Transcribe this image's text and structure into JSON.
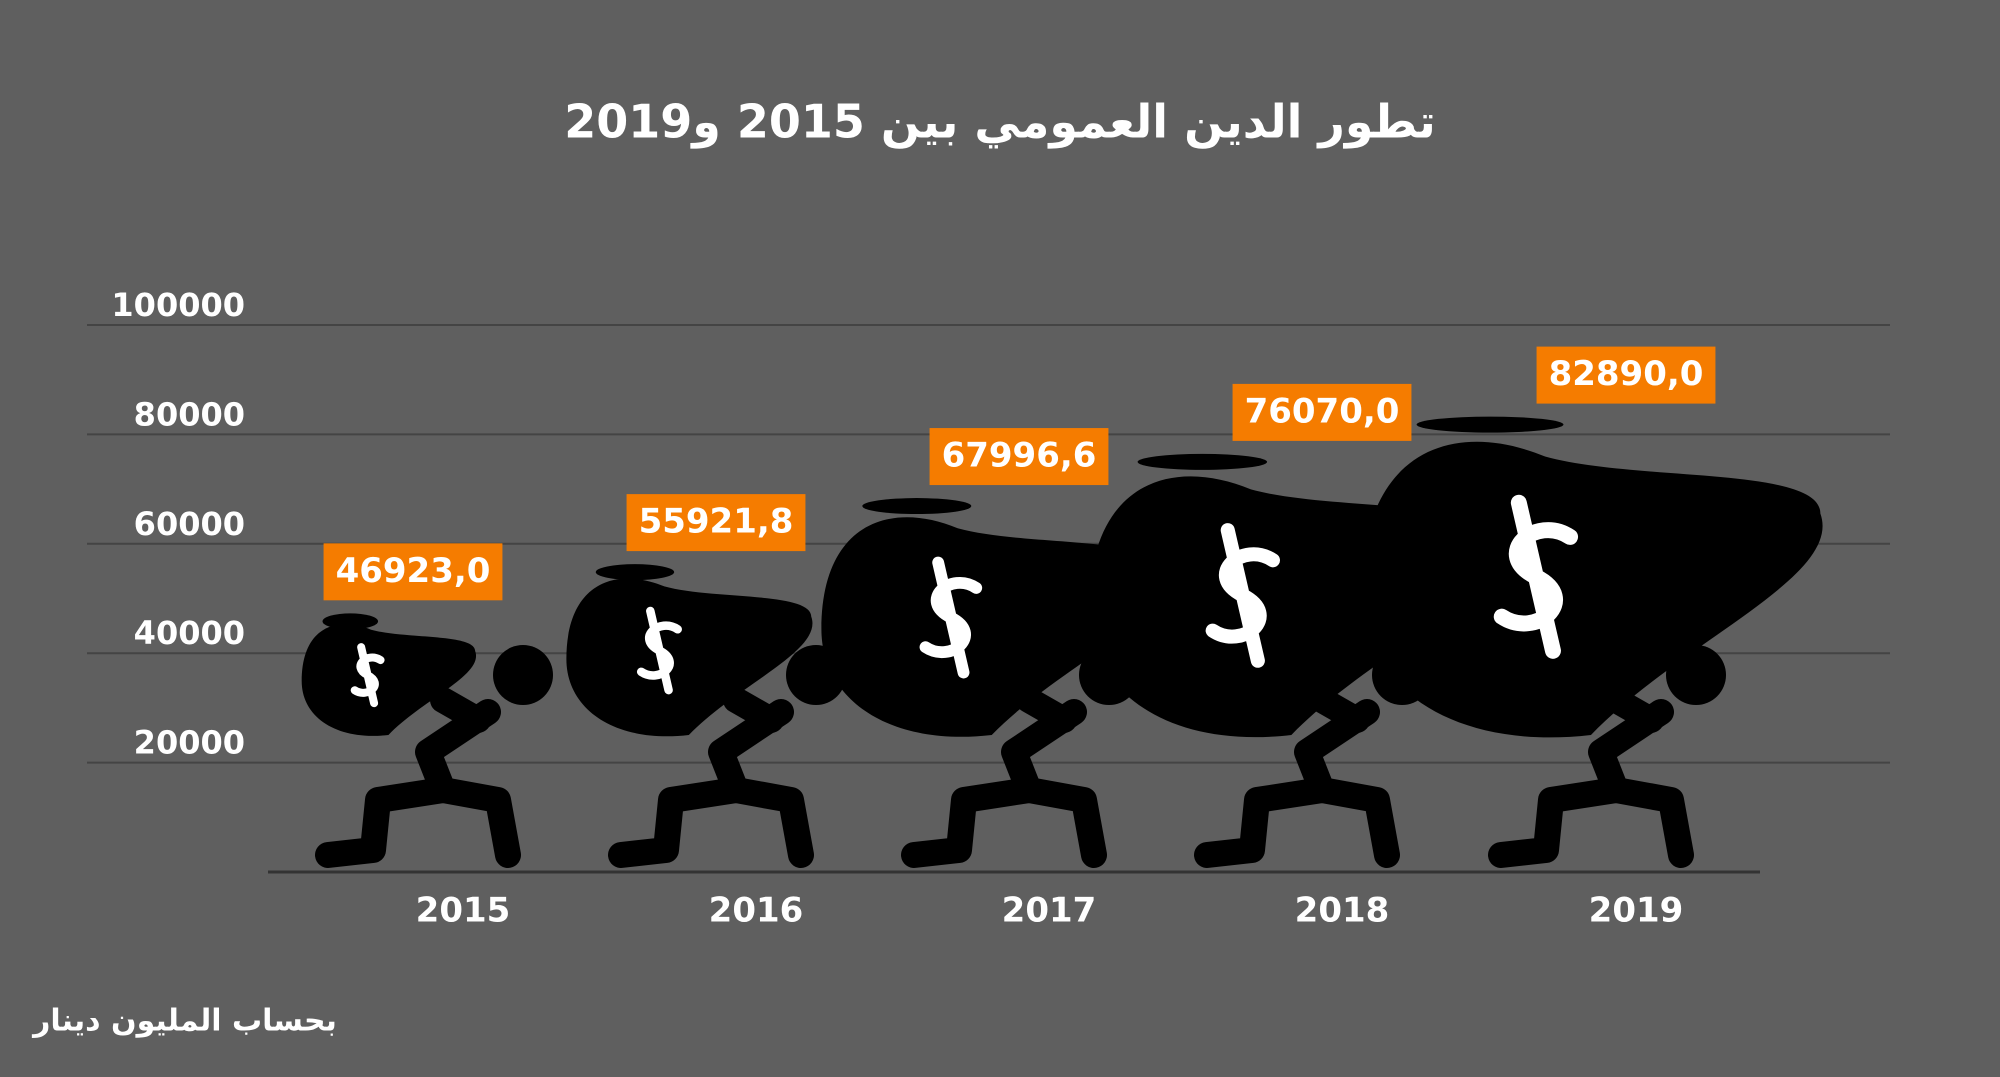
{
  "chart_data": {
    "type": "pictograph",
    "title": "تطور الدين العمومي بين 2015 و2019",
    "note": "بحساب المليون دينار",
    "categories": [
      "2015",
      "2016",
      "2017",
      "2018",
      "2019"
    ],
    "values": [
      46923.0,
      55921.8,
      67996.6,
      76070.0,
      82890.0
    ],
    "value_labels": [
      "46923,0",
      "55921,8",
      "67996,6",
      "76070,0",
      "82890,0"
    ],
    "color": "#000000",
    "label_color": "#f57c00",
    "ylim": [
      0,
      100000
    ],
    "yticks": [
      20000,
      40000,
      60000,
      80000,
      100000
    ],
    "grid": true
  }
}
